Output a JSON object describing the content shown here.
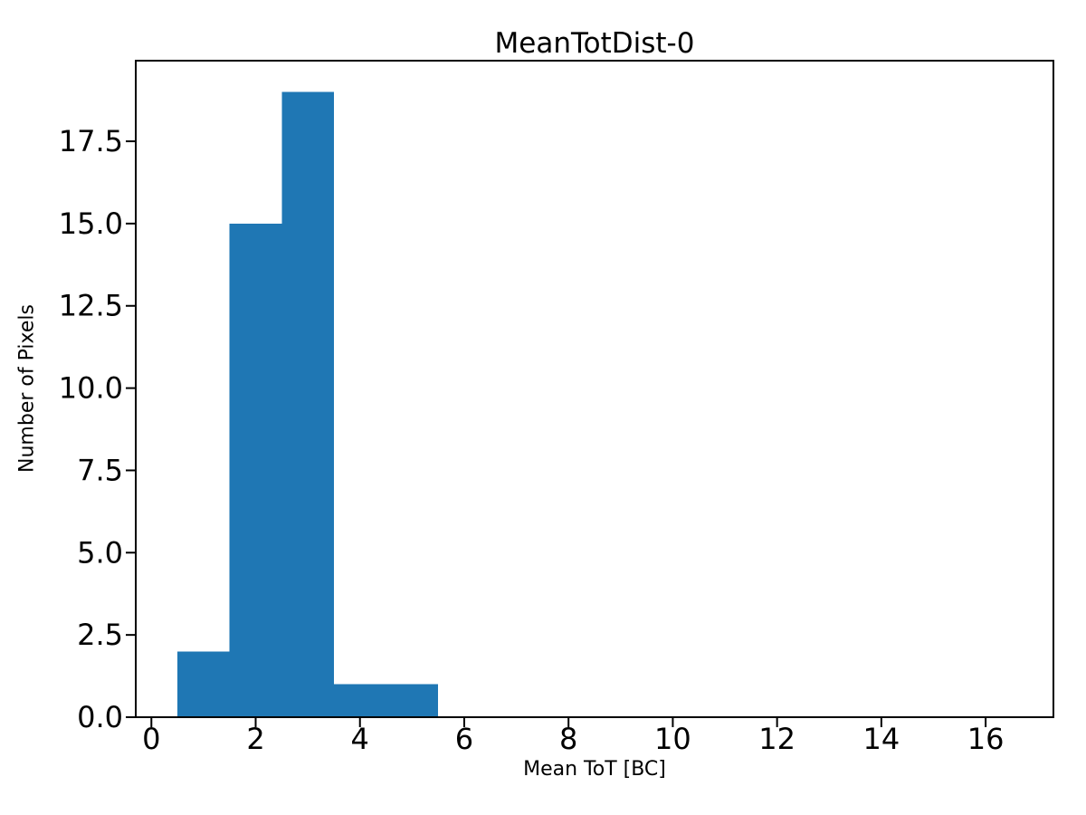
{
  "chart_data": {
    "type": "bar",
    "subtype": "histogram",
    "title": "MeanTotDist-0",
    "xlabel": "Mean ToT [BC]",
    "ylabel": "Number of Pixels",
    "bar_color": "#1f77b4",
    "axis_color": "#000000",
    "background_color": "#ffffff",
    "grid": false,
    "legend_position": "none",
    "xlim": [
      -0.3,
      17.3
    ],
    "ylim": [
      0,
      19.95
    ],
    "xticks": [
      {
        "value": 0,
        "label": "0"
      },
      {
        "value": 2,
        "label": "2"
      },
      {
        "value": 4,
        "label": "4"
      },
      {
        "value": 6,
        "label": "6"
      },
      {
        "value": 8,
        "label": "8"
      },
      {
        "value": 10,
        "label": "10"
      },
      {
        "value": 12,
        "label": "12"
      },
      {
        "value": 14,
        "label": "14"
      },
      {
        "value": 16,
        "label": "16"
      }
    ],
    "yticks": [
      {
        "value": 0,
        "label": "0.0"
      },
      {
        "value": 2.5,
        "label": "2.5"
      },
      {
        "value": 5,
        "label": "5.0"
      },
      {
        "value": 7.5,
        "label": "7.5"
      },
      {
        "value": 10,
        "label": "10.0"
      },
      {
        "value": 12.5,
        "label": "12.5"
      },
      {
        "value": 15,
        "label": "15.0"
      },
      {
        "value": 17.5,
        "label": "17.5"
      }
    ],
    "bins": [
      {
        "start": 0.5,
        "end": 1.5,
        "count": 2
      },
      {
        "start": 1.5,
        "end": 2.5,
        "count": 15
      },
      {
        "start": 2.5,
        "end": 3.5,
        "count": 19
      },
      {
        "start": 3.5,
        "end": 4.5,
        "count": 1
      },
      {
        "start": 4.5,
        "end": 5.5,
        "count": 1
      }
    ]
  }
}
